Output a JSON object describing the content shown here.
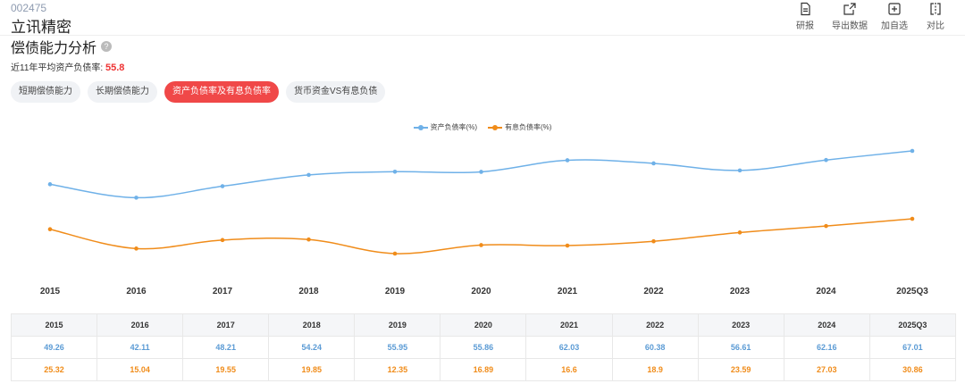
{
  "stock": {
    "code": "002475",
    "name": "立讯精密"
  },
  "toolbar": {
    "research": "研报",
    "export": "导出数据",
    "add_watch": "加自选",
    "compare": "对比"
  },
  "section": {
    "title": "偿债能力分析",
    "avg_label": "近11年平均资产负债率:",
    "avg_value": "55.8"
  },
  "tabs": [
    "短期偿债能力",
    "长期偿债能力",
    "资产负债率及有息负债率",
    "货币资金VS有息负债"
  ],
  "active_tab": 2,
  "colors": {
    "series_a": "#6fb1e8",
    "series_b": "#f08c1a",
    "active_tab": "#f04848"
  },
  "chart_data": {
    "type": "line",
    "x": [
      "2015",
      "2016",
      "2017",
      "2018",
      "2019",
      "2020",
      "2021",
      "2022",
      "2023",
      "2024",
      "2025Q3"
    ],
    "series": [
      {
        "name": "资产负债率(%)",
        "values": [
          49.26,
          42.11,
          48.21,
          54.24,
          55.95,
          55.86,
          62.03,
          60.38,
          56.61,
          62.16,
          67.01
        ]
      },
      {
        "name": "有息负债率(%)",
        "values": [
          25.32,
          15.04,
          19.55,
          19.85,
          12.35,
          16.89,
          16.6,
          18.9,
          23.59,
          27.03,
          30.86
        ]
      }
    ],
    "legend": "top-center",
    "grid": false
  },
  "table": {
    "header": [
      "2015",
      "2016",
      "2017",
      "2018",
      "2019",
      "2020",
      "2021",
      "2022",
      "2023",
      "2024",
      "2025Q3"
    ],
    "row_a": [
      "49.26",
      "42.11",
      "48.21",
      "54.24",
      "55.95",
      "55.86",
      "62.03",
      "60.38",
      "56.61",
      "62.16",
      "67.01"
    ],
    "row_b": [
      "25.32",
      "15.04",
      "19.55",
      "19.85",
      "12.35",
      "16.89",
      "16.6",
      "18.9",
      "23.59",
      "27.03",
      "30.86"
    ]
  }
}
